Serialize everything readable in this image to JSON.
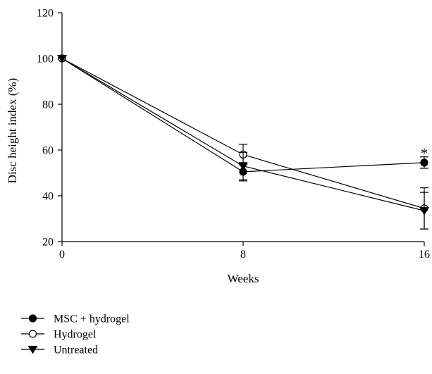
{
  "chart_data": {
    "type": "line",
    "xlabel": "Weeks",
    "ylabel": "Disc height index (%)",
    "x": [
      0,
      8,
      16
    ],
    "xlim": [
      0,
      16
    ],
    "ylim": [
      20,
      120
    ],
    "x_ticks": [
      0,
      8,
      16
    ],
    "y_ticks": [
      20,
      40,
      60,
      80,
      100,
      120
    ],
    "x_tick_labels": [
      "0",
      "8",
      "16"
    ],
    "y_tick_labels": [
      "20",
      "40",
      "60",
      "80",
      "100",
      "120"
    ],
    "grid": false,
    "legend_position": "bottom-left",
    "series": [
      {
        "name": "MSC + hydrogel",
        "marker": "filled-circle",
        "values": [
          100,
          50.5,
          54.5
        ],
        "error": [
          0,
          4,
          2.5
        ]
      },
      {
        "name": "Hydrogel",
        "marker": "open-circle",
        "values": [
          100,
          58,
          34.5
        ],
        "error": [
          0,
          4.5,
          9
        ]
      },
      {
        "name": "Untreated",
        "marker": "filled-triangle-down",
        "values": [
          100,
          53,
          33.5
        ],
        "error": [
          0,
          6,
          8
        ]
      }
    ],
    "annotations": [
      {
        "text": "*",
        "x": 16,
        "y": 58.5
      }
    ]
  }
}
